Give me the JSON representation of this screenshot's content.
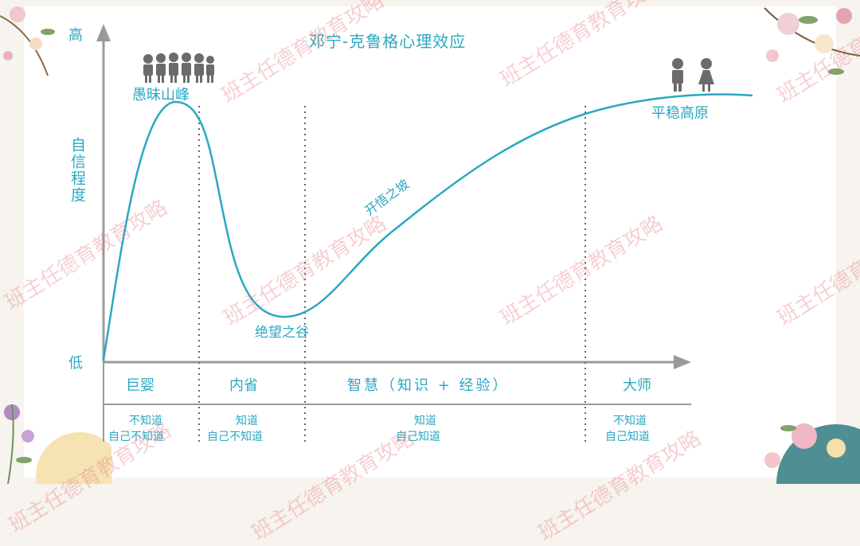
{
  "title": "邓宁-克鲁格心理效应",
  "y_axis": {
    "high": "高",
    "low": "低",
    "label": "自信程度"
  },
  "points": {
    "peak": "愚昧山峰",
    "valley": "绝望之谷",
    "slope": "开悟之坡",
    "plateau": "平稳高原"
  },
  "stages": [
    {
      "name": "巨婴",
      "desc1": "不知道",
      "desc2": "自己不知道"
    },
    {
      "name": "内省",
      "desc1": "知道",
      "desc2": "自己不知道"
    },
    {
      "name": "智慧（知识 + 经验）",
      "desc1": "知道",
      "desc2": "自己知道"
    },
    {
      "name": "大师",
      "desc1": "不知道",
      "desc2": "自己知道"
    }
  ],
  "watermark": "班主任德育教育攻略",
  "colors": {
    "accent": "#2aa8c1",
    "person": "#6b6b6b",
    "watermark": "#e6788a"
  }
}
